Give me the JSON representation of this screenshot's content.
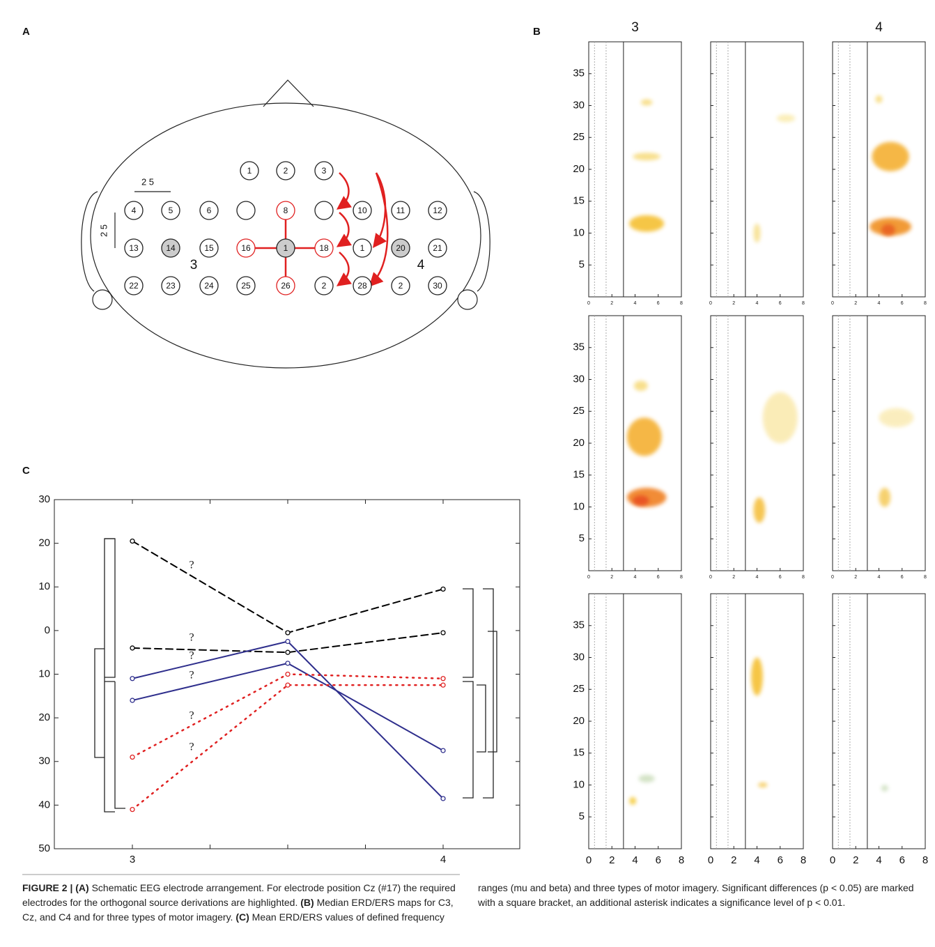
{
  "panel_a": {
    "label": "A",
    "electrodes": [
      [
        "1",
        "2",
        "3"
      ],
      [
        "4",
        "5",
        "6",
        null,
        "8",
        null,
        "10",
        "11",
        "12"
      ],
      [
        "13",
        "14",
        "15",
        "16",
        "1",
        "18",
        "1",
        "20",
        "21"
      ],
      [
        "22",
        "23",
        "24",
        "25",
        "26",
        "2",
        "28",
        "2",
        "30"
      ]
    ],
    "scale_labels": [
      "2 5",
      "2 5"
    ],
    "region_labels": [
      "3",
      "4"
    ]
  },
  "panel_b": {
    "label": "B",
    "column_titles": [
      "3",
      null,
      "4"
    ],
    "xlim": [
      0,
      8
    ],
    "xticks": [
      0,
      2,
      4,
      6,
      8
    ],
    "ylim": [
      0,
      40
    ],
    "yticks": [
      5,
      10,
      15,
      20,
      25,
      30,
      35
    ]
  },
  "panel_c": {
    "label": "C",
    "type": "line",
    "categories": [
      "3",
      null,
      "4"
    ],
    "ylim": [
      -50,
      30
    ],
    "yticks": [
      30,
      20,
      10,
      0,
      {
        "value": -10,
        "label": "10"
      },
      {
        "value": -20,
        "label": "20"
      },
      {
        "value": -30,
        "label": "30"
      },
      {
        "value": -40,
        "label": "40"
      },
      {
        "value": -50,
        "label": "50"
      }
    ],
    "series": [
      {
        "color": "#000000",
        "style": "dashed",
        "values": [
          20.5,
          -0.5,
          9.5
        ]
      },
      {
        "color": "#000000",
        "style": "dashed",
        "values": [
          -4,
          -5,
          -0.5
        ]
      },
      {
        "color": "#2e2e8c",
        "style": "solid",
        "values": [
          -11,
          -2.5,
          -38.5
        ]
      },
      {
        "color": "#2e2e8c",
        "style": "solid",
        "values": [
          -16,
          -7.5,
          -27.5
        ]
      },
      {
        "color": "#e02020",
        "style": "dotted",
        "values": [
          -29,
          -10,
          -11
        ]
      },
      {
        "color": "#e02020",
        "style": "dotted",
        "values": [
          -41,
          -12.5,
          -12.5
        ]
      }
    ],
    "annotations": [
      "?",
      "?",
      "?",
      "?",
      "?",
      "?"
    ]
  },
  "caption": [
    {
      "text": "FIGURE 2 | (A)",
      "bold": true
    },
    {
      "text": " Schematic EEG electrode arrangement. For electrode position Cz (#17) the required electrodes for the orthogonal source derivations are highlighted. ",
      "bold": false
    },
    {
      "text": "(B)",
      "bold": true
    },
    {
      "text": " Median ERD/ERS maps for C3, Cz, and C4 and for three types of motor imagery. ",
      "bold": false
    },
    {
      "text": "(C)",
      "bold": true
    },
    {
      "text": " Mean ERD/ERS values of defined frequency ranges (mu and beta) and three types of motor imagery. Significant differences (p < 0.05) are marked with a square bracket, an additional asterisk indicates a significance level of p < 0.01.",
      "bold": false
    }
  ]
}
